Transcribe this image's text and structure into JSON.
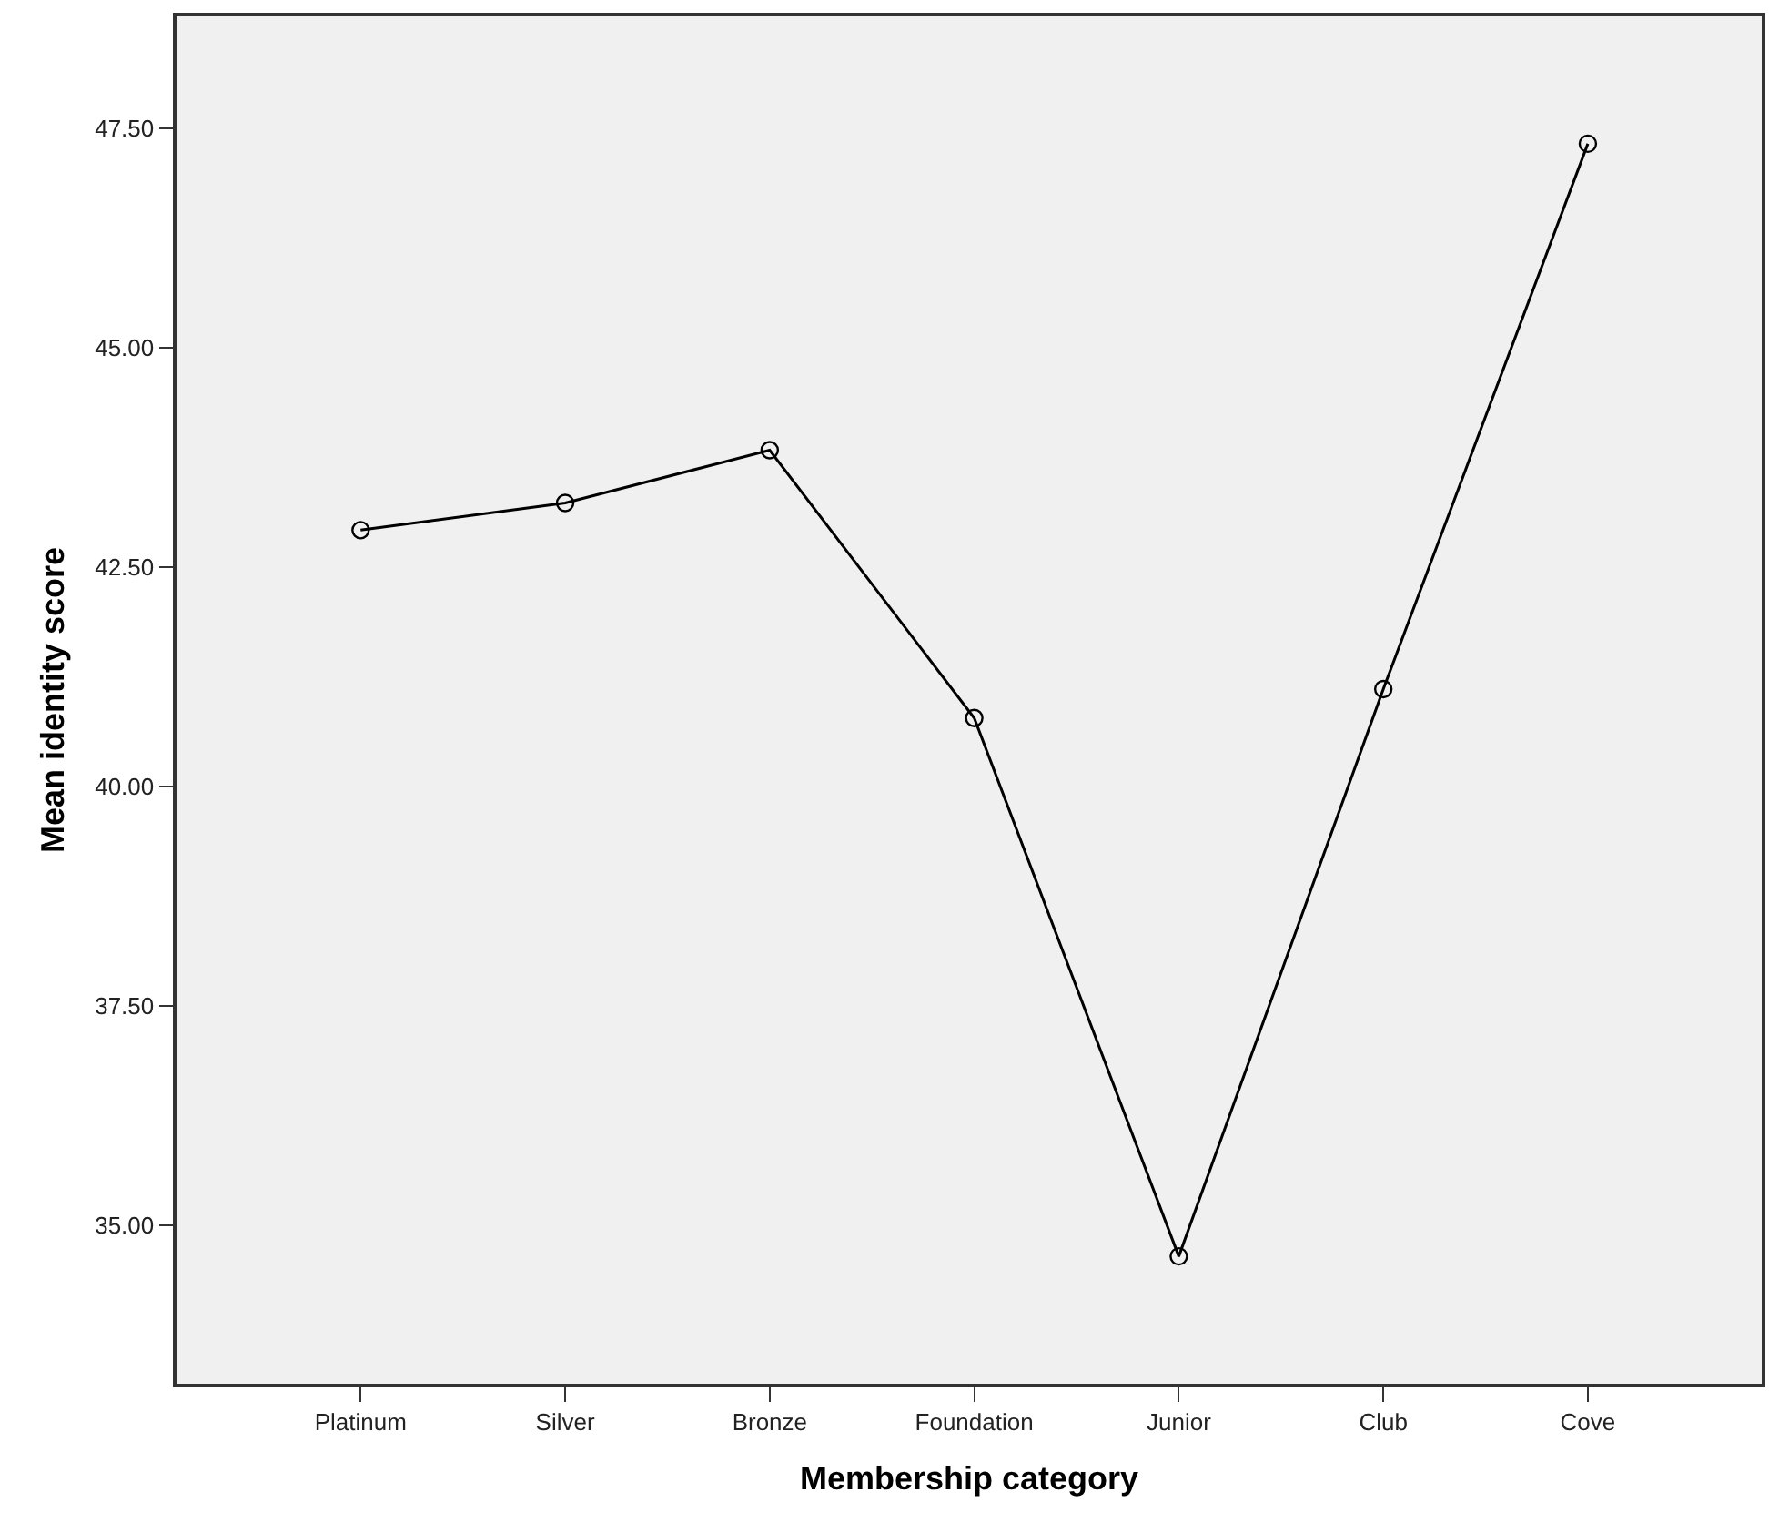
{
  "chart_data": {
    "type": "line",
    "xlabel": "Membership category",
    "ylabel": "Mean identity score",
    "categories": [
      "Platinum",
      "Silver",
      "Bronze",
      "Foundation",
      "Junior",
      "Club",
      "Cove"
    ],
    "series": [
      {
        "color": "#000000",
        "values": [
          42.92,
          43.23,
          43.83,
          40.78,
          34.65,
          41.11,
          47.32
        ]
      }
    ],
    "ylim": [
      33.2,
      48.77
    ],
    "yticks": [
      {
        "value": 35,
        "label": "35.00"
      },
      {
        "value": 37.5,
        "label": "37.50"
      },
      {
        "value": 40,
        "label": "40.00"
      },
      {
        "value": 42.5,
        "label": "42.50"
      },
      {
        "value": 45,
        "label": "45.00"
      },
      {
        "value": 47.5,
        "label": "47.50"
      }
    ],
    "grid": false,
    "legend": false,
    "marker": "circle",
    "line_style": "solid"
  }
}
